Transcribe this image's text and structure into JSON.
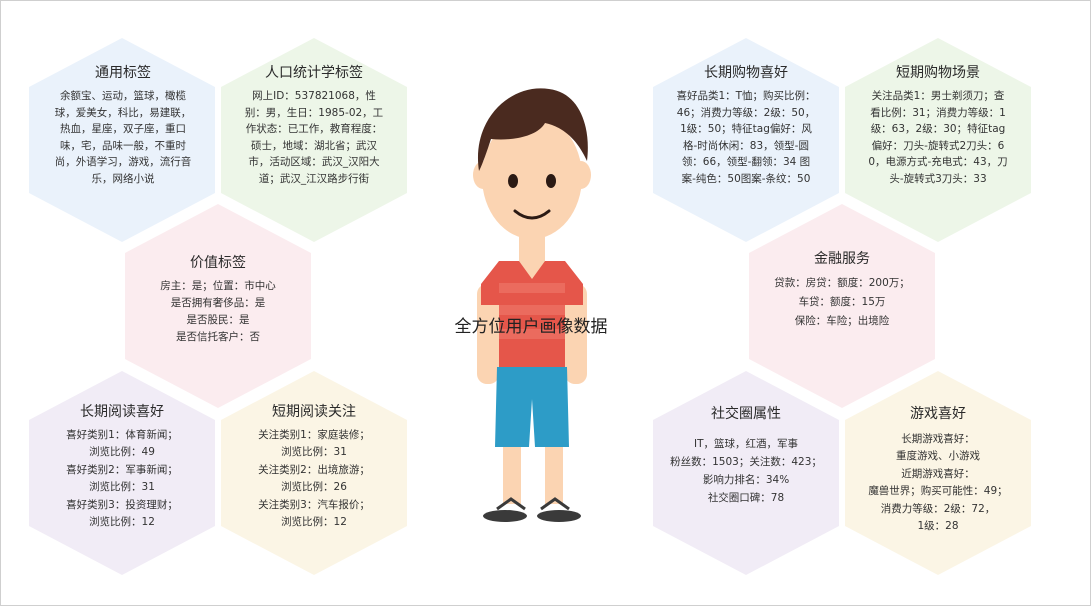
{
  "center_label": "全方位用户画像数据",
  "hexagons": [
    {
      "title": "通用标签",
      "body": "余额宝、运动，篮球，橄榄球，爱美女，科比，易建联，热血，星座，双子座，重口味，宅，品味一般，不重时尚，外语学习，游戏，流行音乐，网络小说"
    },
    {
      "title": "人口统计学标签",
      "body": "网上ID：537821068，性别：男，生日：1985-02，工作状态：已工作，教育程度：硕士，地域：湖北省；武汉市，活动区域：武汉_汉阳大道；武汉_江汉路步行街"
    },
    {
      "title": "价值标签",
      "body": "房主：是；位置：市中心\n是否拥有奢侈品：是\n是否股民：是\n是否信托客户：否"
    },
    {
      "title": "长期阅读喜好",
      "body": "喜好类别1：体育新闻；\n浏览比例：49\n喜好类别2：军事新闻；\n浏览比例：31\n喜好类别3：投资理财；\n浏览比例：12"
    },
    {
      "title": "短期阅读关注",
      "body": "关注类别1：家庭装修；\n浏览比例：31\n关注类别2：出境旅游；\n浏览比例：26\n关注类别3：汽车报价；\n浏览比例：12"
    },
    {
      "title": "长期购物喜好",
      "body": "喜好品类1：T恤；购买比例：46；消费力等级：2级：50，1级：50；特征tag偏好：风格-时尚休闲：83，领型-圆领：66，领型-翻领：34 图案-纯色：50图案-条纹：50"
    },
    {
      "title": "短期购物场景",
      "body": "关注品类1：男士剃须刀；查看比例：31；消费力等级：1级：63，2级：30；特征tag偏好：刀头-旋转式2刀头：60，电源方式-充电式：43，刀头-旋转式3刀头：33"
    },
    {
      "title": "金融服务",
      "body": "贷款：房贷：额度：200万；\n车贷：额度：15万\n保险：车险；出境险"
    },
    {
      "title": "社交圈属性",
      "body": "IT，篮球，红酒，军事\n粉丝数：1503；关注数：423；\n影响力排名：34%\n社交圈口碑：78"
    },
    {
      "title": "游戏喜好",
      "body": "长期游戏喜好：\n重度游戏、小游戏\n近期游戏喜好：\n魔兽世界；购买可能性：49；\n消费力等级：2级：72，\n1级：28"
    }
  ],
  "colors": {
    "hex_blue": "#eaf2fb",
    "hex_green": "#edf6e8",
    "hex_pink": "#fbecef",
    "hex_lavender": "#f1ecf6",
    "hex_cream": "#fbf5e5",
    "skin": "#fbd4b2",
    "hair": "#4a2a1f",
    "shirt": "#e5564a",
    "shorts": "#2d9cc7"
  },
  "icons": [
    "person-illustration"
  ]
}
